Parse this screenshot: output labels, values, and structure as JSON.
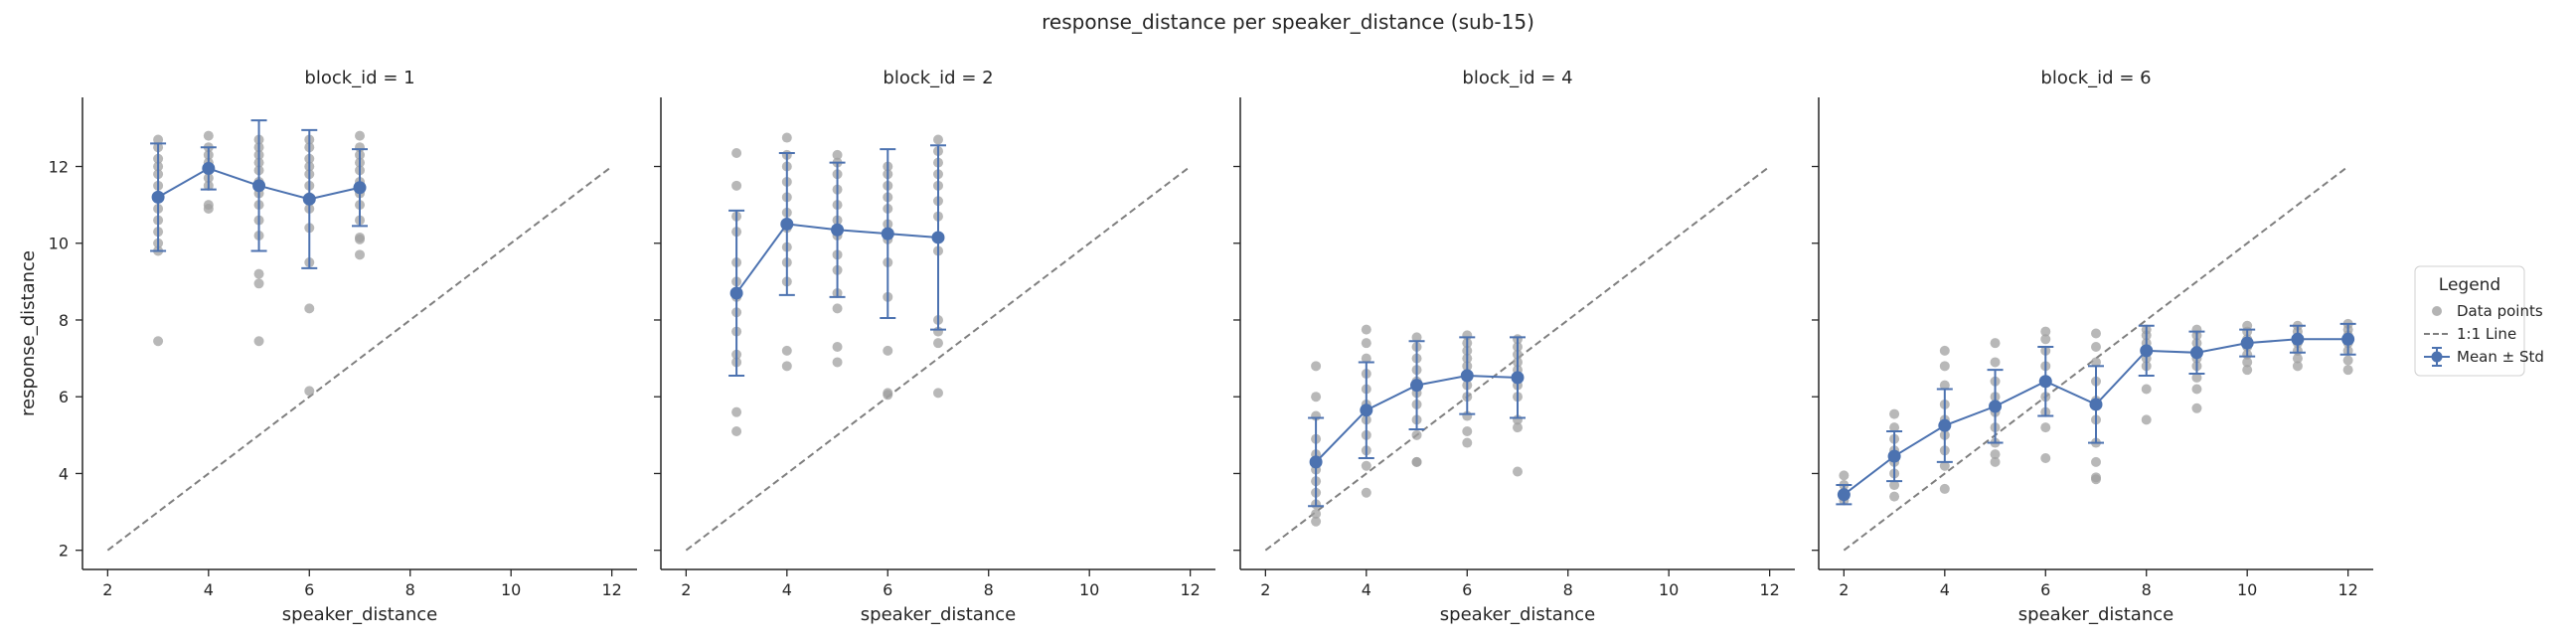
{
  "figure": {
    "title": "response_distance per speaker_distance (sub-15)"
  },
  "legend": {
    "title": "Legend",
    "placement": "right",
    "items": [
      {
        "label": "Data points",
        "kind": "marker",
        "color": "#a0a0a0"
      },
      {
        "label": "1:1 Line",
        "kind": "dashed-line",
        "color": "#7f7f7f"
      },
      {
        "label": "Mean ± Std",
        "kind": "errorbar",
        "color": "#4c72b0"
      }
    ]
  },
  "colors": {
    "points": "#a0a0a0",
    "mean": "#4c72b0",
    "identity": "#7f7f7f",
    "axis": "#262626"
  },
  "chart_data": [
    {
      "type": "scatter",
      "title": "block_id = 1",
      "xlabel": "speaker_distance",
      "ylabel": "response_distance",
      "xlim": [
        1.5,
        12.5
      ],
      "ylim": [
        1.5,
        13.8
      ],
      "xticks": [
        2,
        4,
        6,
        8,
        10,
        12
      ],
      "yticks": [
        2,
        4,
        6,
        8,
        10,
        12
      ],
      "grid": false,
      "identity_line": [
        2,
        12
      ],
      "mean_std": {
        "x": [
          3,
          4,
          5,
          6,
          7
        ],
        "mean": [
          11.2,
          11.95,
          11.5,
          11.15,
          11.45
        ],
        "std": [
          1.4,
          0.55,
          1.7,
          1.8,
          1.0
        ]
      },
      "points": [
        [
          3,
          12.7
        ],
        [
          3,
          12.5
        ],
        [
          3,
          12.2
        ],
        [
          3,
          12.0
        ],
        [
          3,
          11.8
        ],
        [
          3,
          11.5
        ],
        [
          3,
          11.2
        ],
        [
          3,
          10.9
        ],
        [
          3,
          10.6
        ],
        [
          3,
          10.3
        ],
        [
          3,
          10.0
        ],
        [
          3,
          9.8
        ],
        [
          3,
          7.45
        ],
        [
          4,
          12.8
        ],
        [
          4,
          12.5
        ],
        [
          4,
          12.3
        ],
        [
          4,
          12.1
        ],
        [
          4,
          12.0
        ],
        [
          4,
          11.9
        ],
        [
          4,
          11.7
        ],
        [
          4,
          11.5
        ],
        [
          4,
          11.0
        ],
        [
          4,
          10.9
        ],
        [
          5,
          12.7
        ],
        [
          5,
          12.5
        ],
        [
          5,
          12.3
        ],
        [
          5,
          12.1
        ],
        [
          5,
          11.9
        ],
        [
          5,
          11.6
        ],
        [
          5,
          11.3
        ],
        [
          5,
          11.0
        ],
        [
          5,
          10.6
        ],
        [
          5,
          10.2
        ],
        [
          5,
          9.2
        ],
        [
          5,
          8.95
        ],
        [
          5,
          7.45
        ],
        [
          6,
          12.7
        ],
        [
          6,
          12.5
        ],
        [
          6,
          12.2
        ],
        [
          6,
          12.0
        ],
        [
          6,
          11.8
        ],
        [
          6,
          11.5
        ],
        [
          6,
          11.2
        ],
        [
          6,
          10.9
        ],
        [
          6,
          10.4
        ],
        [
          6,
          9.5
        ],
        [
          6,
          8.3
        ],
        [
          6,
          6.15
        ],
        [
          7,
          12.8
        ],
        [
          7,
          12.5
        ],
        [
          7,
          12.3
        ],
        [
          7,
          12.1
        ],
        [
          7,
          11.9
        ],
        [
          7,
          11.6
        ],
        [
          7,
          11.3
        ],
        [
          7,
          11.0
        ],
        [
          7,
          10.6
        ],
        [
          7,
          10.15
        ],
        [
          7,
          10.1
        ],
        [
          7,
          9.7
        ]
      ]
    },
    {
      "type": "scatter",
      "title": "block_id = 2",
      "xlabel": "speaker_distance",
      "ylabel": "",
      "xlim": [
        1.5,
        12.5
      ],
      "ylim": [
        1.5,
        13.8
      ],
      "xticks": [
        2,
        4,
        6,
        8,
        10,
        12
      ],
      "yticks": [
        2,
        4,
        6,
        8,
        10,
        12
      ],
      "grid": false,
      "identity_line": [
        2,
        12
      ],
      "mean_std": {
        "x": [
          3,
          4,
          5,
          6,
          7
        ],
        "mean": [
          8.7,
          10.5,
          10.35,
          10.25,
          10.15
        ],
        "std": [
          2.15,
          1.85,
          1.75,
          2.2,
          2.4
        ]
      },
      "points": [
        [
          3,
          12.35
        ],
        [
          3,
          11.5
        ],
        [
          3,
          10.7
        ],
        [
          3,
          10.3
        ],
        [
          3,
          9.5
        ],
        [
          3,
          9.0
        ],
        [
          3,
          8.6
        ],
        [
          3,
          8.2
        ],
        [
          3,
          7.7
        ],
        [
          3,
          7.1
        ],
        [
          3,
          6.9
        ],
        [
          3,
          5.6
        ],
        [
          3,
          5.1
        ],
        [
          4,
          12.75
        ],
        [
          4,
          12.3
        ],
        [
          4,
          12.0
        ],
        [
          4,
          11.6
        ],
        [
          4,
          11.2
        ],
        [
          4,
          10.8
        ],
        [
          4,
          10.4
        ],
        [
          4,
          9.9
        ],
        [
          4,
          9.5
        ],
        [
          4,
          9.0
        ],
        [
          4,
          7.2
        ],
        [
          4,
          6.8
        ],
        [
          5,
          12.3
        ],
        [
          5,
          12.1
        ],
        [
          5,
          11.8
        ],
        [
          5,
          11.4
        ],
        [
          5,
          11.0
        ],
        [
          5,
          10.6
        ],
        [
          5,
          10.2
        ],
        [
          5,
          9.7
        ],
        [
          5,
          9.3
        ],
        [
          5,
          8.7
        ],
        [
          5,
          8.3
        ],
        [
          5,
          7.3
        ],
        [
          5,
          6.9
        ],
        [
          6,
          12.0
        ],
        [
          6,
          11.8
        ],
        [
          6,
          11.5
        ],
        [
          6,
          11.2
        ],
        [
          6,
          10.9
        ],
        [
          6,
          10.5
        ],
        [
          6,
          10.1
        ],
        [
          6,
          9.5
        ],
        [
          6,
          8.6
        ],
        [
          6,
          7.2
        ],
        [
          6,
          6.1
        ],
        [
          6,
          6.05
        ],
        [
          7,
          12.7
        ],
        [
          7,
          12.4
        ],
        [
          7,
          12.1
        ],
        [
          7,
          11.8
        ],
        [
          7,
          11.5
        ],
        [
          7,
          11.1
        ],
        [
          7,
          10.7
        ],
        [
          7,
          9.8
        ],
        [
          7,
          8.0
        ],
        [
          7,
          7.7
        ],
        [
          7,
          7.4
        ],
        [
          7,
          6.1
        ]
      ]
    },
    {
      "type": "scatter",
      "title": "block_id = 4",
      "xlabel": "speaker_distance",
      "ylabel": "",
      "xlim": [
        1.5,
        12.5
      ],
      "ylim": [
        1.5,
        13.8
      ],
      "xticks": [
        2,
        4,
        6,
        8,
        10,
        12
      ],
      "yticks": [
        2,
        4,
        6,
        8,
        10,
        12
      ],
      "grid": false,
      "identity_line": [
        2,
        12
      ],
      "mean_std": {
        "x": [
          3,
          4,
          5,
          6,
          7
        ],
        "mean": [
          4.3,
          5.65,
          6.3,
          6.55,
          6.5
        ],
        "std": [
          1.15,
          1.25,
          1.15,
          1.0,
          1.05
        ]
      },
      "points": [
        [
          3,
          6.8
        ],
        [
          3,
          6.0
        ],
        [
          3,
          5.5
        ],
        [
          3,
          4.9
        ],
        [
          3,
          4.5
        ],
        [
          3,
          4.1
        ],
        [
          3,
          3.8
        ],
        [
          3,
          3.5
        ],
        [
          3,
          3.2
        ],
        [
          3,
          2.95
        ],
        [
          3,
          2.75
        ],
        [
          4,
          7.75
        ],
        [
          4,
          7.4
        ],
        [
          4,
          7.0
        ],
        [
          4,
          6.6
        ],
        [
          4,
          6.2
        ],
        [
          4,
          5.8
        ],
        [
          4,
          5.4
        ],
        [
          4,
          5.0
        ],
        [
          4,
          4.6
        ],
        [
          4,
          4.2
        ],
        [
          4,
          3.5
        ],
        [
          5,
          7.55
        ],
        [
          5,
          7.3
        ],
        [
          5,
          7.0
        ],
        [
          5,
          6.7
        ],
        [
          5,
          6.4
        ],
        [
          5,
          6.1
        ],
        [
          5,
          5.8
        ],
        [
          5,
          5.4
        ],
        [
          5,
          5.0
        ],
        [
          5,
          4.3
        ],
        [
          5,
          4.3
        ],
        [
          6,
          7.6
        ],
        [
          6,
          7.4
        ],
        [
          6,
          7.2
        ],
        [
          6,
          7.0
        ],
        [
          6,
          6.8
        ],
        [
          6,
          6.6
        ],
        [
          6,
          6.3
        ],
        [
          6,
          6.0
        ],
        [
          6,
          5.5
        ],
        [
          6,
          5.1
        ],
        [
          6,
          4.8
        ],
        [
          7,
          7.5
        ],
        [
          7,
          7.3
        ],
        [
          7,
          7.1
        ],
        [
          7,
          6.9
        ],
        [
          7,
          6.7
        ],
        [
          7,
          6.5
        ],
        [
          7,
          6.3
        ],
        [
          7,
          6.0
        ],
        [
          7,
          5.4
        ],
        [
          7,
          5.2
        ],
        [
          7,
          4.05
        ]
      ]
    },
    {
      "type": "scatter",
      "title": "block_id = 6",
      "xlabel": "speaker_distance",
      "ylabel": "",
      "xlim": [
        1.5,
        12.5
      ],
      "ylim": [
        1.5,
        13.8
      ],
      "xticks": [
        2,
        4,
        6,
        8,
        10,
        12
      ],
      "yticks": [
        2,
        4,
        6,
        8,
        10,
        12
      ],
      "grid": false,
      "identity_line": [
        2,
        12
      ],
      "mean_std": {
        "x": [
          2,
          3,
          4,
          5,
          6,
          7,
          8,
          9,
          10,
          11,
          12
        ],
        "mean": [
          3.45,
          4.45,
          5.25,
          5.75,
          6.4,
          5.8,
          7.2,
          7.15,
          7.4,
          7.5,
          7.5
        ],
        "std": [
          0.25,
          0.65,
          0.95,
          0.95,
          0.9,
          1.0,
          0.65,
          0.55,
          0.35,
          0.35,
          0.4
        ]
      },
      "points": [
        [
          2,
          3.95
        ],
        [
          2,
          3.7
        ],
        [
          2,
          3.5
        ],
        [
          2,
          3.3
        ],
        [
          3,
          5.55
        ],
        [
          3,
          5.2
        ],
        [
          3,
          4.9
        ],
        [
          3,
          4.6
        ],
        [
          3,
          4.3
        ],
        [
          3,
          4.0
        ],
        [
          3,
          3.7
        ],
        [
          3,
          3.4
        ],
        [
          4,
          7.2
        ],
        [
          4,
          6.8
        ],
        [
          4,
          6.3
        ],
        [
          4,
          5.8
        ],
        [
          4,
          5.4
        ],
        [
          4,
          5.0
        ],
        [
          4,
          4.6
        ],
        [
          4,
          4.2
        ],
        [
          4,
          3.6
        ],
        [
          5,
          7.4
        ],
        [
          5,
          6.9
        ],
        [
          5,
          6.4
        ],
        [
          5,
          6.0
        ],
        [
          5,
          5.6
        ],
        [
          5,
          5.2
        ],
        [
          5,
          4.8
        ],
        [
          5,
          4.5
        ],
        [
          5,
          4.3
        ],
        [
          6,
          7.7
        ],
        [
          6,
          7.5
        ],
        [
          6,
          7.2
        ],
        [
          6,
          6.8
        ],
        [
          6,
          6.4
        ],
        [
          6,
          6.0
        ],
        [
          6,
          5.6
        ],
        [
          6,
          5.2
        ],
        [
          6,
          4.4
        ],
        [
          7,
          7.65
        ],
        [
          7,
          7.3
        ],
        [
          7,
          6.9
        ],
        [
          7,
          6.4
        ],
        [
          7,
          5.9
        ],
        [
          7,
          5.4
        ],
        [
          7,
          4.8
        ],
        [
          7,
          4.3
        ],
        [
          7,
          3.9
        ],
        [
          7,
          3.85
        ],
        [
          8,
          7.75
        ],
        [
          8,
          7.6
        ],
        [
          8,
          7.4
        ],
        [
          8,
          7.2
        ],
        [
          8,
          7.0
        ],
        [
          8,
          6.8
        ],
        [
          8,
          6.2
        ],
        [
          8,
          5.4
        ],
        [
          9,
          7.75
        ],
        [
          9,
          7.6
        ],
        [
          9,
          7.4
        ],
        [
          9,
          7.2
        ],
        [
          9,
          7.0
        ],
        [
          9,
          6.8
        ],
        [
          9,
          6.5
        ],
        [
          9,
          6.2
        ],
        [
          9,
          5.7
        ],
        [
          10,
          7.85
        ],
        [
          10,
          7.7
        ],
        [
          10,
          7.5
        ],
        [
          10,
          7.3
        ],
        [
          10,
          7.1
        ],
        [
          10,
          6.9
        ],
        [
          10,
          6.7
        ],
        [
          11,
          7.85
        ],
        [
          11,
          7.7
        ],
        [
          11,
          7.55
        ],
        [
          11,
          7.4
        ],
        [
          11,
          7.2
        ],
        [
          11,
          7.0
        ],
        [
          11,
          6.8
        ],
        [
          12,
          7.9
        ],
        [
          12,
          7.75
        ],
        [
          12,
          7.6
        ],
        [
          12,
          7.4
        ],
        [
          12,
          7.2
        ],
        [
          12,
          6.95
        ],
        [
          12,
          6.7
        ]
      ]
    }
  ]
}
